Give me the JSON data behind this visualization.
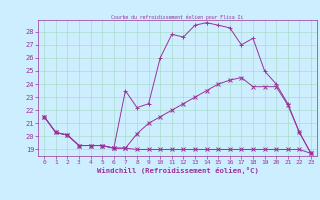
{
  "title": "Courbe du refroidissement éolien pour Flisa Ii",
  "xlabel": "Windchill (Refroidissement éolien,°C)",
  "bg_color": "#cceeff",
  "line_color": "#993399",
  "grid_color": "#aaddcc",
  "xlim": [
    -0.5,
    23.5
  ],
  "ylim": [
    18.5,
    28.9
  ],
  "xticks": [
    0,
    1,
    2,
    3,
    4,
    5,
    6,
    7,
    8,
    9,
    10,
    11,
    12,
    13,
    14,
    15,
    16,
    17,
    18,
    19,
    20,
    21,
    22,
    23
  ],
  "yticks": [
    19,
    20,
    21,
    22,
    23,
    24,
    25,
    26,
    27,
    28
  ],
  "line_bottom_x": [
    0,
    1,
    2,
    3,
    4,
    5,
    6,
    7,
    8,
    9,
    10,
    11,
    12,
    13,
    14,
    15,
    16,
    17,
    18,
    19,
    20,
    21,
    22,
    23
  ],
  "line_bottom_y": [
    21.5,
    20.3,
    20.1,
    19.3,
    19.3,
    19.3,
    19.1,
    19.1,
    19.0,
    19.0,
    19.0,
    19.0,
    19.0,
    19.0,
    19.0,
    19.0,
    19.0,
    19.0,
    19.0,
    19.0,
    19.0,
    19.0,
    19.0,
    18.7
  ],
  "line_mid_x": [
    0,
    1,
    2,
    3,
    4,
    5,
    6,
    7,
    8,
    9,
    10,
    11,
    12,
    13,
    14,
    15,
    16,
    17,
    18,
    19,
    20,
    21,
    22,
    23
  ],
  "line_mid_y": [
    21.5,
    20.3,
    20.1,
    19.3,
    19.3,
    19.3,
    19.1,
    19.1,
    20.2,
    21.0,
    21.5,
    22.0,
    22.5,
    23.0,
    23.5,
    24.0,
    24.3,
    24.5,
    23.8,
    23.8,
    23.8,
    22.4,
    20.3,
    18.7
  ],
  "line_top_x": [
    0,
    1,
    2,
    3,
    4,
    5,
    6,
    7,
    8,
    9,
    10,
    11,
    12,
    13,
    14,
    15,
    16,
    17,
    18,
    19,
    20,
    21,
    22,
    23
  ],
  "line_top_y": [
    21.5,
    20.3,
    20.1,
    19.3,
    19.3,
    19.3,
    19.1,
    23.5,
    22.2,
    22.5,
    26.0,
    27.8,
    27.6,
    28.5,
    28.7,
    28.5,
    28.3,
    27.0,
    27.5,
    25.0,
    24.0,
    22.5,
    20.3,
    18.7
  ]
}
